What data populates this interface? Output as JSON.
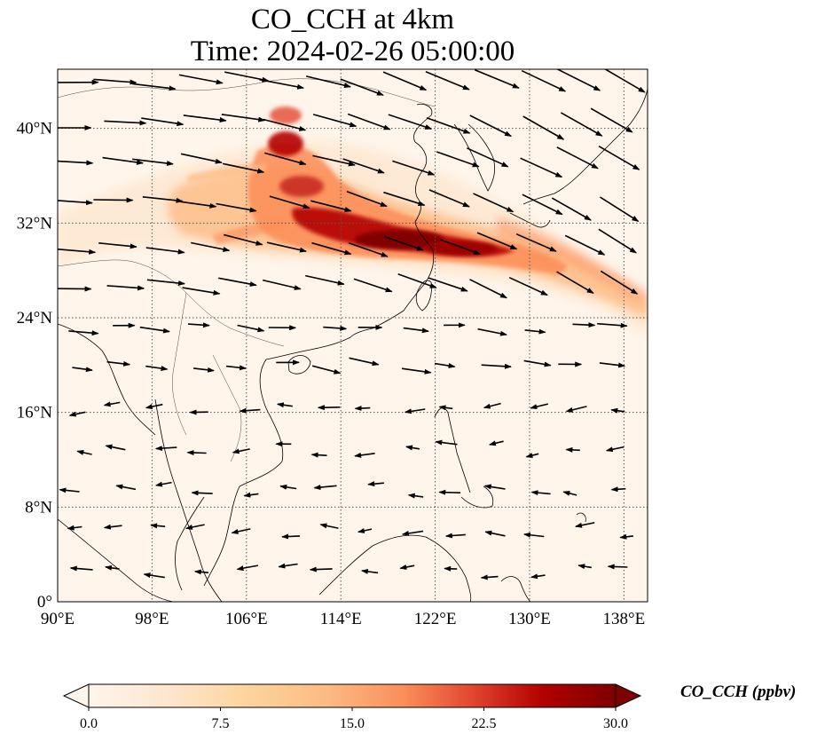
{
  "title_line1": "CO_CCH at 4km",
  "title_line2": "Time: 2024-02-26 05:00:00",
  "map": {
    "lon_range": [
      90,
      140
    ],
    "lat_range": [
      0,
      45
    ],
    "x_ticks": [
      {
        "lon": 90,
        "label": "90°E"
      },
      {
        "lon": 98,
        "label": "98°E"
      },
      {
        "lon": 106,
        "label": "106°E"
      },
      {
        "lon": 114,
        "label": "114°E"
      },
      {
        "lon": 122,
        "label": "122°E"
      },
      {
        "lon": 130,
        "label": "130°E"
      },
      {
        "lon": 138,
        "label": "138°E"
      }
    ],
    "y_ticks": [
      {
        "lat": 0,
        "label": "0°"
      },
      {
        "lat": 8,
        "label": "8°N"
      },
      {
        "lat": 16,
        "label": "16°N"
      },
      {
        "lat": 24,
        "label": "24°N"
      },
      {
        "lat": 32,
        "label": "32°N"
      },
      {
        "lat": 40,
        "label": "40°N"
      }
    ],
    "gridlines": true,
    "plume_colors": [
      "#fff5eb",
      "#fdd9a8",
      "#fc8d59",
      "#d7301f",
      "#7f0000"
    ]
  },
  "colorbar": {
    "label": "CO_CCH (ppbv)",
    "min": 0,
    "max": 30,
    "ticks": [
      {
        "value": 0,
        "label": "0.0"
      },
      {
        "value": 7.5,
        "label": "7.5"
      },
      {
        "value": 15,
        "label": "15.0"
      },
      {
        "value": 22.5,
        "label": "22.5"
      },
      {
        "value": 30,
        "label": "30.0"
      }
    ],
    "colors": [
      "#fff5eb",
      "#fdd49e",
      "#fdbb84",
      "#fc8d59",
      "#ef6548",
      "#d7301f",
      "#b30000",
      "#7f0000"
    ]
  }
}
